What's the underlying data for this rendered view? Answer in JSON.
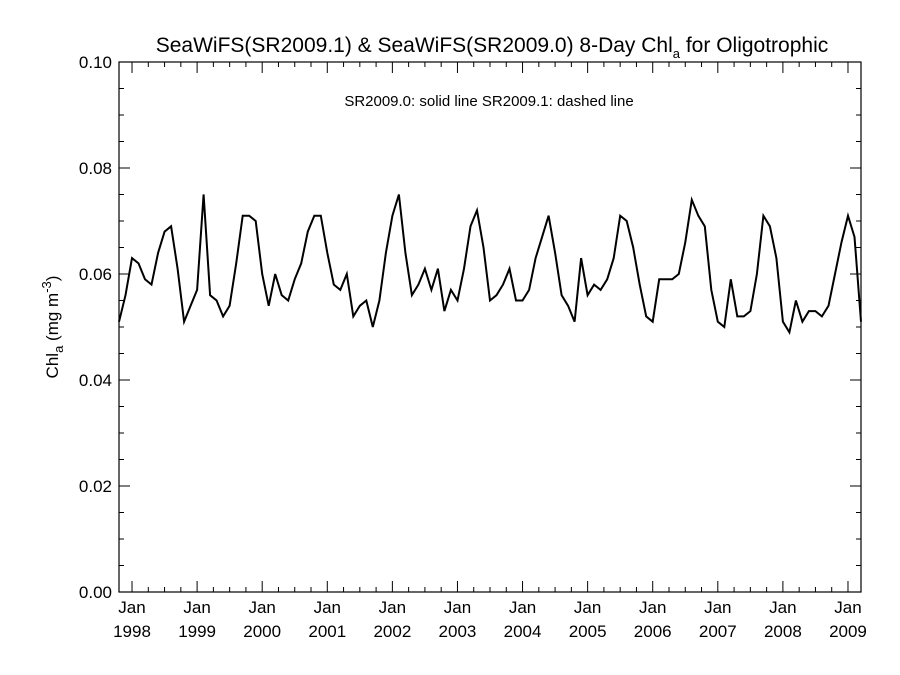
{
  "chart_data": {
    "type": "line",
    "title": {
      "main": "SeaWiFS(SR2009.1) & SeaWiFS(SR2009.0) 8-Day Chl",
      "sub": "a",
      "suffix": " for Oligotrophic"
    },
    "ylabel": {
      "main": "Chl",
      "sub": "a",
      "units": " (mg m",
      "sup": "-3",
      "close": ")"
    },
    "annotation": "SR2009.0: solid line   SR2009.1: dashed line",
    "ylim": [
      0.0,
      0.1
    ],
    "xlim": [
      1997.8,
      2009.2
    ],
    "y_ticks": [
      "0.00",
      "0.02",
      "0.04",
      "0.06",
      "0.08",
      "0.10"
    ],
    "x_ticks": [
      {
        "month": "Jan",
        "year": "1998",
        "value": 1998
      },
      {
        "month": "Jan",
        "year": "1999",
        "value": 1999
      },
      {
        "month": "Jan",
        "year": "2000",
        "value": 2000
      },
      {
        "month": "Jan",
        "year": "2001",
        "value": 2001
      },
      {
        "month": "Jan",
        "year": "2002",
        "value": 2002
      },
      {
        "month": "Jan",
        "year": "2003",
        "value": 2003
      },
      {
        "month": "Jan",
        "year": "2004",
        "value": 2004
      },
      {
        "month": "Jan",
        "year": "2005",
        "value": 2005
      },
      {
        "month": "Jan",
        "year": "2006",
        "value": 2006
      },
      {
        "month": "Jan",
        "year": "2007",
        "value": 2007
      },
      {
        "month": "Jan",
        "year": "2008",
        "value": 2008
      },
      {
        "month": "Jan",
        "year": "2009",
        "value": 2009
      }
    ],
    "grid": false,
    "series": [
      {
        "style": "solid",
        "color": "#000000",
        "x": [
          1997.8,
          1997.9,
          1998.0,
          1998.1,
          1998.2,
          1998.3,
          1998.4,
          1998.5,
          1998.6,
          1998.7,
          1998.8,
          1998.9,
          1999.0,
          1999.1,
          1999.2,
          1999.3,
          1999.4,
          1999.5,
          1999.6,
          1999.7,
          1999.8,
          1999.9,
          2000.0,
          2000.1,
          2000.2,
          2000.3,
          2000.4,
          2000.5,
          2000.6,
          2000.7,
          2000.8,
          2000.9,
          2001.0,
          2001.1,
          2001.2,
          2001.3,
          2001.4,
          2001.5,
          2001.6,
          2001.7,
          2001.8,
          2001.9,
          2002.0,
          2002.1,
          2002.2,
          2002.3,
          2002.4,
          2002.5,
          2002.6,
          2002.7,
          2002.8,
          2002.9,
          2003.0,
          2003.1,
          2003.2,
          2003.3,
          2003.4,
          2003.5,
          2003.6,
          2003.7,
          2003.8,
          2003.9,
          2004.0,
          2004.1,
          2004.2,
          2004.3,
          2004.4,
          2004.5,
          2004.6,
          2004.7,
          2004.8,
          2004.9,
          2005.0,
          2005.1,
          2005.2,
          2005.3,
          2005.4,
          2005.5,
          2005.6,
          2005.7,
          2005.8,
          2005.9,
          2006.0,
          2006.1,
          2006.2,
          2006.3,
          2006.4,
          2006.5,
          2006.6,
          2006.7,
          2006.8,
          2006.9,
          2007.0,
          2007.1,
          2007.2,
          2007.3,
          2007.4,
          2007.5,
          2007.6,
          2007.7,
          2007.8,
          2007.9,
          2008.0,
          2008.1,
          2008.2,
          2008.3,
          2008.4,
          2008.5,
          2008.6,
          2008.7,
          2008.8,
          2008.9,
          2009.0,
          2009.1,
          2009.2
        ],
        "y": [
          0.051,
          0.056,
          0.063,
          0.062,
          0.059,
          0.058,
          0.064,
          0.068,
          0.069,
          0.061,
          0.051,
          0.054,
          0.057,
          0.075,
          0.056,
          0.055,
          0.052,
          0.054,
          0.062,
          0.071,
          0.071,
          0.07,
          0.06,
          0.054,
          0.06,
          0.056,
          0.055,
          0.059,
          0.062,
          0.068,
          0.071,
          0.071,
          0.064,
          0.058,
          0.057,
          0.06,
          0.052,
          0.054,
          0.055,
          0.05,
          0.055,
          0.064,
          0.071,
          0.075,
          0.064,
          0.056,
          0.058,
          0.061,
          0.057,
          0.061,
          0.053,
          0.057,
          0.055,
          0.061,
          0.069,
          0.072,
          0.065,
          0.055,
          0.056,
          0.058,
          0.061,
          0.055,
          0.055,
          0.057,
          0.063,
          0.067,
          0.071,
          0.064,
          0.056,
          0.054,
          0.051,
          0.063,
          0.056,
          0.058,
          0.057,
          0.059,
          0.063,
          0.071,
          0.07,
          0.065,
          0.058,
          0.052,
          0.051,
          0.059,
          0.059,
          0.059,
          0.06,
          0.066,
          0.074,
          0.071,
          0.069,
          0.057,
          0.051,
          0.05,
          0.059,
          0.052,
          0.052,
          0.053,
          0.06,
          0.071,
          0.069,
          0.063,
          0.051,
          0.049,
          0.055,
          0.051,
          0.053,
          0.053,
          0.052,
          0.054,
          0.06,
          0.066,
          0.071,
          0.067,
          0.051
        ]
      }
    ]
  }
}
